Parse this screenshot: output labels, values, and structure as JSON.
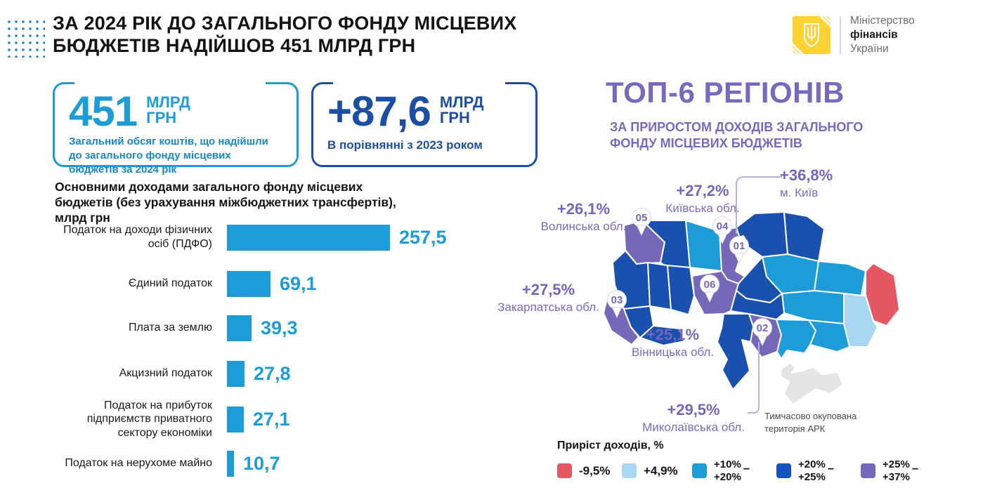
{
  "header": {
    "title_line1": "ЗА 2024 РІК ДО ЗАГАЛЬНОГО ФОНДУ МІСЦЕВИХ",
    "title_line2": "БЮДЖЕТІВ НАДІЙШОВ 451 МЛРД ГРН",
    "logo": {
      "org_line1": "Міністерство",
      "org_line2": "фінансів",
      "org_line3": "України"
    }
  },
  "stat_boxes": [
    {
      "number": "451",
      "unit_line1": "МЛРД",
      "unit_line2": "ГРН",
      "desc": "Загальний обсяг коштів, що надійшли до загального фонду місцевих бюджетів за 2024 рік"
    },
    {
      "number": "+87,6",
      "unit_line1": "МЛРД",
      "unit_line2": "ГРН",
      "desc": "В порівнянні з 2023 роком"
    }
  ],
  "chart_data": {
    "type": "bar",
    "orientation": "horizontal",
    "title": "Основними доходами загального фонду місцевих бюджетів (без урахування міжбюджетних трансфертів), млрд грн",
    "unit": "млрд грн",
    "bar_color": "#1E9CD8",
    "categories": [
      "Податок на доходи фізичних осіб (ПДФО)",
      "Єдиний податок",
      "Плата за землю",
      "Акцизний податок",
      "Податок на прибуток підприємств приватного сектору економіки",
      "Податок на нерухоме майно"
    ],
    "values": [
      257.5,
      69.1,
      39.3,
      27.8,
      27.1,
      10.7
    ],
    "value_labels": [
      "257,5",
      "69,1",
      "39,3",
      "27,8",
      "27,1",
      "10,7"
    ],
    "xlim": [
      0,
      280
    ]
  },
  "map": {
    "title": "ТОП-6 РЕГІОНІВ",
    "subtitle_line1": "ЗА ПРИРОСТОМ ДОХОДІВ ЗАГАЛЬНОГО",
    "subtitle_line2": "ФОНДУ МІСЦЕВИХ БЮДЖЕТІВ",
    "top6": [
      {
        "rank": "01",
        "value": "+36,8%",
        "name": "м. Київ"
      },
      {
        "rank": "02",
        "value": "+29,5%",
        "name": "Миколаївська обл."
      },
      {
        "rank": "03",
        "value": "+27,5%",
        "name": "Закарпатська обл."
      },
      {
        "rank": "04",
        "value": "+27,2%",
        "name": "Київська обл."
      },
      {
        "rank": "05",
        "value": "+26,1%",
        "name": "Волинська обл."
      },
      {
        "rank": "06",
        "value": "+25,1%",
        "name": "Вінницька обл."
      }
    ],
    "crimea_note_line1": "Тимчасово окупована",
    "crimea_note_line2": "територія АРК",
    "legend": {
      "title": "Приріст доходів, %",
      "items": [
        {
          "label": "-9,5%",
          "color": "#E45863"
        },
        {
          "label": "+4,9%",
          "color": "#A9D6F0"
        },
        {
          "line1": "+10%",
          "line2": "+20%",
          "color": "#1E9CD8"
        },
        {
          "line1": "+20%",
          "line2": "+25%",
          "color": "#1553C0"
        },
        {
          "line1": "+25%",
          "line2": "+37%",
          "color": "#7767B8"
        }
      ]
    }
  },
  "colors": {
    "accent_cyan": "#1E9CD8",
    "accent_dark_blue": "#1C4FA4",
    "accent_purple": "#7968C0",
    "map_dark_blue": "#1B51AE",
    "map_pale_blue": "#A9D6F0",
    "map_red": "#E45863",
    "map_gray": "#E4E4E6",
    "logo_yellow": "#FFD233"
  }
}
